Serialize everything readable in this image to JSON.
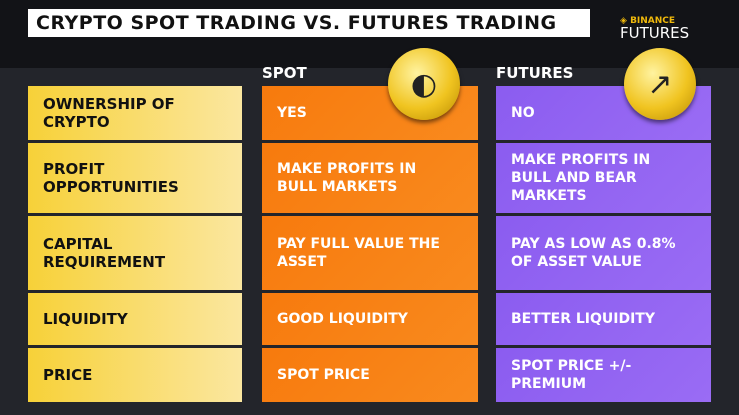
{
  "title": "CRYPTO SPOT TRADING VS. FUTURES TRADING",
  "brand": {
    "line1": "BINANCE",
    "line2": "FUTURES"
  },
  "columns": {
    "spot": "SPOT",
    "futures": "FUTURES"
  },
  "rows": [
    {
      "label": "OWNERSHIP OF CRYPTO",
      "spot": "YES",
      "futures": "NO"
    },
    {
      "label": "PROFIT OPPORTUNITIES",
      "spot": "MAKE PROFITS IN BULL MARKETS",
      "futures": "MAKE PROFITS IN BULL AND BEAR MARKETS"
    },
    {
      "label": "CAPITAL REQUIREMENT",
      "spot": "PAY FULL VALUE THE ASSET",
      "futures": "PAY AS LOW AS 0.8% OF ASSET VALUE"
    },
    {
      "label": "LIQUIDITY",
      "spot": "GOOD LIQUIDITY",
      "futures": "BETTER LIQUIDITY"
    },
    {
      "label": "PRICE",
      "spot": "SPOT PRICE",
      "futures": "SPOT PRICE +/- PREMIUM"
    }
  ],
  "colors": {
    "label_bg": "#f7d138",
    "spot_bg": "#f77a0d",
    "futures_bg": "#8b5cf0",
    "background": "#23252b"
  }
}
